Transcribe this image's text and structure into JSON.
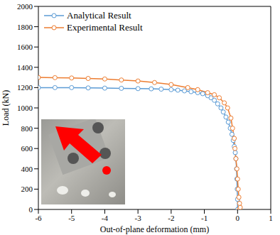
{
  "chart_data": {
    "type": "line",
    "x_label": "Out-of-plane deformation (mm)",
    "y_label": "Load (kN)",
    "xlim": [
      -6,
      1
    ],
    "xticks": [
      -6,
      -5,
      -4,
      -3,
      -2,
      -1,
      0,
      1
    ],
    "ylim": [
      0,
      2000
    ],
    "yticks": [
      0,
      200,
      400,
      600,
      800,
      1000,
      1200,
      1400,
      1600,
      1800,
      2000
    ],
    "grid": false,
    "legend": "upper left",
    "marker": "circle",
    "series": [
      {
        "name": "Analytical Result",
        "color": "#5b9bd5",
        "x": [
          0,
          0,
          -0.01,
          -0.02,
          -0.03,
          -0.05,
          -0.07,
          -0.1,
          -0.13,
          -0.17,
          -0.22,
          -0.28,
          -0.35,
          -0.43,
          -0.5,
          -0.6,
          -0.7,
          -0.8,
          -0.9,
          -1.05,
          -1.2,
          -1.4,
          -1.6,
          -1.8,
          -2,
          -2.3,
          -2.6,
          -3,
          -3.5,
          -4,
          -4.5,
          -5,
          -5.5,
          -6
        ],
        "values": [
          0,
          100,
          200,
          300,
          400,
          500,
          560,
          620,
          680,
          740,
          800,
          860,
          910,
          960,
          1000,
          1040,
          1075,
          1100,
          1120,
          1140,
          1150,
          1160,
          1168,
          1175,
          1180,
          1185,
          1188,
          1190,
          1193,
          1195,
          1197,
          1200,
          1200,
          1200
        ]
      },
      {
        "name": "Experimental Result",
        "color": "#ed7d31",
        "x": [
          0.05,
          0.08,
          0.06,
          0.04,
          0.02,
          0,
          -0.02,
          -0.05,
          -0.08,
          -0.1,
          -0.15,
          -0.2,
          -0.3,
          -0.4,
          -0.55,
          -0.7,
          -0.9,
          -1.2,
          -1.5,
          -2,
          -2.5,
          -3,
          -3.5,
          -4,
          -4.5,
          -5,
          -5.5,
          -6
        ],
        "values": [
          0,
          20,
          60,
          120,
          200,
          300,
          400,
          500,
          600,
          700,
          800,
          900,
          1000,
          1050,
          1100,
          1130,
          1150,
          1180,
          1200,
          1230,
          1250,
          1265,
          1275,
          1285,
          1290,
          1295,
          1298,
          1300
        ]
      }
    ]
  }
}
